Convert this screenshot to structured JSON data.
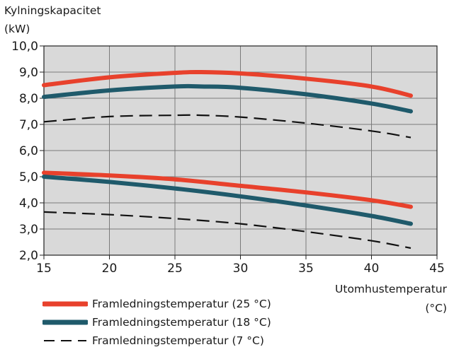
{
  "chart_data": {
    "type": "line",
    "ylabel_line1": "Kylningskapacitet",
    "ylabel_line2": "(kW)",
    "xlabel_line1": "Utomhustemperatur",
    "xlabel_line2": "(°C)",
    "xlim": [
      15,
      45
    ],
    "ylim": [
      2.0,
      10.0
    ],
    "xticks": [
      15,
      20,
      25,
      30,
      35,
      40,
      45
    ],
    "yticks": [
      "2,0",
      "3,0",
      "4,0",
      "5,0",
      "6,0",
      "7,0",
      "8,0",
      "9,0",
      "10,0"
    ],
    "grid": true,
    "background": "#d9d9d9",
    "legend_position": "bottom-left",
    "series": [
      {
        "name": "Framledningstemperatur (25 °C)",
        "color": "#e8412c",
        "style": "solid",
        "x": [
          15,
          20,
          25,
          27,
          30,
          35,
          40,
          43
        ],
        "y": [
          8.5,
          8.8,
          8.97,
          9.0,
          8.95,
          8.75,
          8.45,
          8.1
        ]
      },
      {
        "name": "Framledningstemperatur (18 °C)",
        "color": "#1f5a6b",
        "style": "solid",
        "x": [
          15,
          20,
          25,
          27,
          30,
          35,
          40,
          43
        ],
        "y": [
          8.05,
          8.3,
          8.45,
          8.45,
          8.4,
          8.15,
          7.8,
          7.5
        ]
      },
      {
        "name": "Framledningstemperatur (7 °C)",
        "color": "#111111",
        "style": "dashed",
        "x": [
          15,
          20,
          25,
          27,
          30,
          35,
          40,
          43
        ],
        "y": [
          7.1,
          7.3,
          7.35,
          7.35,
          7.28,
          7.05,
          6.75,
          6.5
        ]
      },
      {
        "name": "Framledningstemperatur (25 °C)",
        "color": "#e8412c",
        "style": "solid",
        "x": [
          15,
          20,
          25,
          30,
          35,
          40,
          43
        ],
        "y": [
          5.15,
          5.05,
          4.9,
          4.65,
          4.4,
          4.1,
          3.85
        ]
      },
      {
        "name": "Framledningstemperatur (18 °C)",
        "color": "#1f5a6b",
        "style": "solid",
        "x": [
          15,
          20,
          25,
          30,
          35,
          40,
          43
        ],
        "y": [
          5.0,
          4.8,
          4.55,
          4.25,
          3.9,
          3.5,
          3.2
        ]
      },
      {
        "name": "Framledningstemperatur (7 °C)",
        "color": "#111111",
        "style": "dashed",
        "x": [
          15,
          20,
          25,
          30,
          35,
          40,
          43
        ],
        "y": [
          3.65,
          3.55,
          3.4,
          3.2,
          2.9,
          2.55,
          2.27
        ]
      }
    ]
  },
  "legend": [
    {
      "label": "Framledningstemperatur (25 °C)",
      "color": "#e8412c",
      "style": "solid"
    },
    {
      "label": "Framledningstemperatur (18 °C)",
      "color": "#1f5a6b",
      "style": "solid"
    },
    {
      "label": "Framledningstemperatur (7 °C)",
      "color": "#111111",
      "style": "dashed"
    }
  ]
}
